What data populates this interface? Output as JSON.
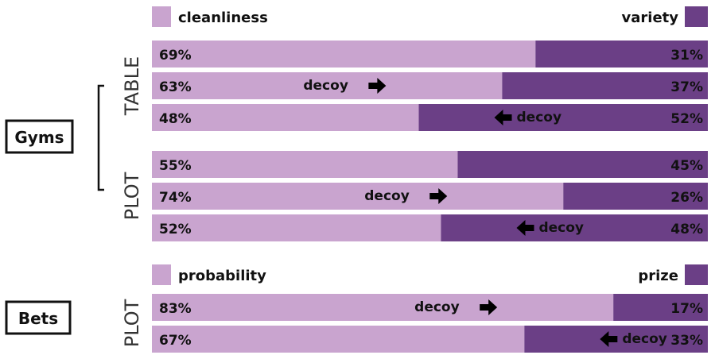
{
  "colors": {
    "left": "#c9a4cf",
    "right": "#6b3f86",
    "text": "#111111"
  },
  "chart_data": {
    "type": "bar",
    "orientation": "horizontal-stacked-100",
    "groups": [
      {
        "name": "Gyms",
        "legend_left": "cleanliness",
        "legend_right": "variety",
        "conditions": [
          {
            "name": "TABLE",
            "rows": [
              {
                "left": 69,
                "right": 31,
                "left_label": "69%",
                "right_label": "31%",
                "decoy": ""
              },
              {
                "left": 63,
                "right": 37,
                "left_label": "63%",
                "right_label": "37%",
                "decoy": "left"
              },
              {
                "left": 48,
                "right": 52,
                "left_label": "48%",
                "right_label": "52%",
                "decoy": "right"
              }
            ]
          },
          {
            "name": "PLOT",
            "rows": [
              {
                "left": 55,
                "right": 45,
                "left_label": "55%",
                "right_label": "45%",
                "decoy": ""
              },
              {
                "left": 74,
                "right": 26,
                "left_label": "74%",
                "right_label": "26%",
                "decoy": "left"
              },
              {
                "left": 52,
                "right": 48,
                "left_label": "52%",
                "right_label": "48%",
                "decoy": "right"
              }
            ]
          }
        ]
      },
      {
        "name": "Bets",
        "legend_left": "probability",
        "legend_right": "prize",
        "conditions": [
          {
            "name": "PLOT",
            "rows": [
              {
                "left": 83,
                "right": 17,
                "left_label": "83%",
                "right_label": "17%",
                "decoy": "left"
              },
              {
                "left": 67,
                "right": 33,
                "left_label": "67%",
                "right_label": "33%",
                "decoy": "right"
              }
            ]
          }
        ]
      }
    ],
    "decoy_label": "decoy"
  }
}
